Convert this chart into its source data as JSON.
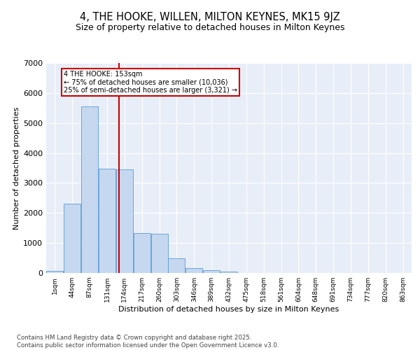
{
  "title": "4, THE HOOKE, WILLEN, MILTON KEYNES, MK15 9JZ",
  "subtitle": "Size of property relative to detached houses in Milton Keynes",
  "xlabel": "Distribution of detached houses by size in Milton Keynes",
  "ylabel": "Number of detached properties",
  "bar_values": [
    75,
    2300,
    5550,
    3480,
    3450,
    1320,
    1310,
    480,
    160,
    90,
    50,
    0,
    0,
    0,
    0,
    0,
    0,
    0,
    0,
    0,
    0
  ],
  "bar_labels": [
    "1sqm",
    "44sqm",
    "87sqm",
    "131sqm",
    "174sqm",
    "217sqm",
    "260sqm",
    "303sqm",
    "346sqm",
    "389sqm",
    "432sqm",
    "475sqm",
    "518sqm",
    "561sqm",
    "604sqm",
    "648sqm",
    "691sqm",
    "734sqm",
    "777sqm",
    "820sqm",
    "863sqm"
  ],
  "bar_color": "#c5d8f0",
  "bar_edge_color": "#5b9bd5",
  "vline_x": 3.67,
  "vline_color": "#cc0000",
  "annotation_text": "4 THE HOOKE: 153sqm\n← 75% of detached houses are smaller (10,036)\n25% of semi-detached houses are larger (3,321) →",
  "annotation_box_color": "#cc0000",
  "ylim": [
    0,
    7000
  ],
  "yticks": [
    0,
    1000,
    2000,
    3000,
    4000,
    5000,
    6000,
    7000
  ],
  "bg_color": "#e8eef8",
  "grid_color": "#ffffff",
  "footer": "Contains HM Land Registry data © Crown copyright and database right 2025.\nContains public sector information licensed under the Open Government Licence v3.0.",
  "title_fontsize": 10.5,
  "subtitle_fontsize": 9
}
